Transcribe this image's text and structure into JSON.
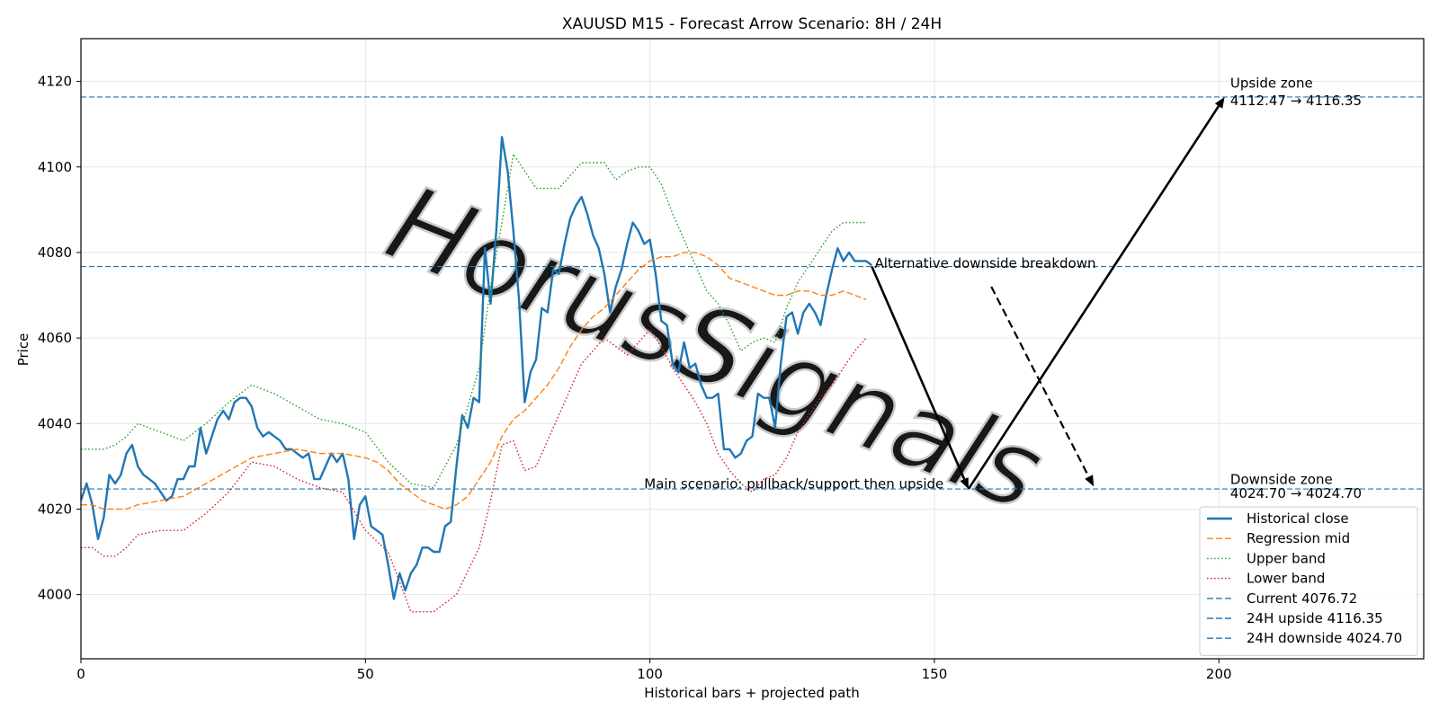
{
  "chart_data": {
    "type": "line",
    "title": "XAUUSD M15 - Forecast Arrow Scenario: 8H / 24H",
    "xlabel": "Historical bars + projected path",
    "ylabel": "Price",
    "xlim": [
      0,
      236
    ],
    "ylim": [
      3985,
      4130
    ],
    "x_ticks": [
      0,
      50,
      100,
      150,
      200
    ],
    "y_ticks": [
      4000,
      4020,
      4040,
      4060,
      4080,
      4100,
      4120
    ],
    "grid": true,
    "legend_position": "lower-right",
    "watermark": "HorusSignals",
    "series": [
      {
        "name": "Historical close",
        "color": "#1f77b4",
        "style": "solid",
        "x": [
          0,
          1,
          2,
          3,
          4,
          5,
          6,
          7,
          8,
          9,
          10,
          11,
          12,
          13,
          14,
          15,
          16,
          17,
          18,
          19,
          20,
          21,
          22,
          23,
          24,
          25,
          26,
          27,
          28,
          29,
          30,
          31,
          32,
          33,
          34,
          35,
          36,
          37,
          38,
          39,
          40,
          41,
          42,
          43,
          44,
          45,
          46,
          47,
          48,
          49,
          50,
          51,
          52,
          53,
          54,
          55,
          56,
          57,
          58,
          59,
          60,
          61,
          62,
          63,
          64,
          65,
          66,
          67,
          68,
          69,
          70,
          71,
          72,
          73,
          74,
          75,
          76,
          77,
          78,
          79,
          80,
          81,
          82,
          83,
          84,
          85,
          86,
          87,
          88,
          89,
          90,
          91,
          92,
          93,
          94,
          95,
          96,
          97,
          98,
          99,
          100,
          101,
          102,
          103,
          104,
          105,
          106,
          107,
          108,
          109,
          110,
          111,
          112,
          113,
          114,
          115,
          116,
          117,
          118,
          119,
          120,
          121,
          122,
          123,
          124,
          125,
          126,
          127,
          128,
          129,
          130,
          131,
          132,
          133,
          134,
          135,
          136,
          137,
          138,
          139
        ],
        "values": [
          4022,
          4026,
          4021,
          4013,
          4018,
          4028,
          4026,
          4028,
          4033,
          4035,
          4030,
          4028,
          4027,
          4026,
          4024,
          4022,
          4023,
          4027,
          4027,
          4030,
          4030,
          4039,
          4033,
          4037,
          4041,
          4043,
          4041,
          4045,
          4046,
          4046,
          4044,
          4039,
          4037,
          4038,
          4037,
          4036,
          4034,
          4034,
          4033,
          4032,
          4033,
          4027,
          4027,
          4030,
          4033,
          4031,
          4033,
          4027,
          4013,
          4021,
          4023,
          4016,
          4015,
          4014,
          4007,
          3999,
          4005,
          4001,
          4005,
          4007,
          4011,
          4011,
          4010,
          4010,
          4016,
          4017,
          4030,
          4042,
          4039,
          4046,
          4045,
          4081,
          4068,
          4085,
          4107,
          4099,
          4085,
          4069,
          4045,
          4052,
          4055,
          4067,
          4066,
          4076,
          4075,
          4082,
          4088,
          4091,
          4093,
          4089,
          4084,
          4081,
          4075,
          4066,
          4072,
          4076,
          4082,
          4087,
          4085,
          4082,
          4083,
          4075,
          4064,
          4063,
          4054,
          4052,
          4059,
          4053,
          4054,
          4049,
          4046,
          4046,
          4047,
          4034,
          4034,
          4032,
          4033,
          4036,
          4037,
          4047,
          4046,
          4046,
          4039,
          4054,
          4065,
          4066,
          4061,
          4066,
          4068,
          4066,
          4063,
          4070,
          4076,
          4081,
          4078,
          4080,
          4078,
          4078,
          4078,
          4077
        ]
      },
      {
        "name": "Regression mid",
        "color": "#ff7f0e",
        "style": "dashed",
        "x": [
          0,
          2,
          4,
          6,
          8,
          10,
          14,
          18,
          22,
          26,
          30,
          34,
          38,
          42,
          46,
          50,
          52,
          54,
          56,
          58,
          60,
          62,
          64,
          66,
          68,
          70,
          72,
          74,
          76,
          78,
          80,
          82,
          84,
          86,
          88,
          90,
          92,
          94,
          96,
          98,
          100,
          102,
          104,
          106,
          108,
          110,
          112,
          114,
          116,
          118,
          120,
          122,
          124,
          126,
          128,
          130,
          132,
          134,
          136,
          138
        ],
        "values": [
          4021,
          4021,
          4020,
          4020,
          4020,
          4021,
          4022,
          4023,
          4026,
          4029,
          4032,
          4033,
          4034,
          4033,
          4033,
          4032,
          4031,
          4029,
          4026,
          4024,
          4022,
          4021,
          4020,
          4021,
          4023,
          4027,
          4031,
          4037,
          4041,
          4043,
          4046,
          4049,
          4053,
          4058,
          4062,
          4065,
          4067,
          4070,
          4073,
          4076,
          4078,
          4079,
          4079,
          4080,
          4080,
          4079,
          4077,
          4074,
          4073,
          4072,
          4071,
          4070,
          4070,
          4071,
          4071,
          4070,
          4070,
          4071,
          4070,
          4069
        ]
      },
      {
        "name": "Upper band",
        "color": "#2ca02c",
        "style": "dotted",
        "x": [
          0,
          2,
          4,
          6,
          8,
          10,
          14,
          18,
          22,
          26,
          30,
          34,
          38,
          42,
          46,
          50,
          54,
          58,
          62,
          66,
          70,
          72,
          74,
          76,
          78,
          80,
          84,
          88,
          92,
          94,
          96,
          98,
          100,
          102,
          104,
          106,
          108,
          110,
          112,
          114,
          116,
          118,
          120,
          122,
          124,
          126,
          128,
          130,
          132,
          134,
          136,
          138
        ],
        "values": [
          4034,
          4034,
          4034,
          4035,
          4037,
          4040,
          4038,
          4036,
          4040,
          4045,
          4049,
          4047,
          4044,
          4041,
          4040,
          4038,
          4031,
          4026,
          4025,
          4035,
          4053,
          4072,
          4087,
          4103,
          4099,
          4095,
          4095,
          4101,
          4101,
          4097,
          4099,
          4100,
          4100,
          4096,
          4089,
          4083,
          4077,
          4071,
          4068,
          4063,
          4057,
          4059,
          4060,
          4059,
          4067,
          4073,
          4077,
          4081,
          4085,
          4087,
          4087,
          4087
        ]
      },
      {
        "name": "Lower band",
        "color": "#d62728",
        "style": "dotted",
        "x": [
          0,
          2,
          4,
          6,
          8,
          10,
          14,
          18,
          22,
          26,
          30,
          34,
          38,
          42,
          46,
          50,
          54,
          58,
          62,
          66,
          70,
          72,
          74,
          76,
          78,
          80,
          84,
          88,
          92,
          94,
          96,
          98,
          100,
          102,
          104,
          106,
          108,
          110,
          112,
          114,
          116,
          118,
          120,
          122,
          124,
          126,
          128,
          130,
          132,
          134,
          136,
          138
        ],
        "values": [
          4011,
          4011,
          4009,
          4009,
          4011,
          4014,
          4015,
          4015,
          4019,
          4024,
          4031,
          4030,
          4027,
          4025,
          4024,
          4015,
          4010,
          3996,
          3996,
          4000,
          4011,
          4022,
          4035,
          4036,
          4029,
          4030,
          4042,
          4054,
          4060,
          4058,
          4056,
          4059,
          4062,
          4058,
          4053,
          4049,
          4045,
          4040,
          4033,
          4029,
          4026,
          4024,
          4027,
          4028,
          4032,
          4038,
          4042,
          4046,
          4049,
          4053,
          4057,
          4060
        ]
      }
    ],
    "reference_lines": [
      {
        "name": "Current 4076.72",
        "y": 4076.72,
        "color": "#1f77b4",
        "style": "dashed"
      },
      {
        "name": "24H upside 4116.35",
        "y": 4116.35,
        "color": "#1f77b4",
        "style": "dashed"
      },
      {
        "name": "24H downside 4024.70",
        "y": 4024.7,
        "color": "#1f77b4",
        "style": "dashed"
      }
    ],
    "arrows": [
      {
        "from": [
          139,
          4076.72
        ],
        "to": [
          156,
          4024.7
        ],
        "style": "solid"
      },
      {
        "from": [
          156,
          4024.7
        ],
        "to": [
          201,
          4116.35
        ],
        "style": "solid"
      },
      {
        "from": [
          160,
          4072
        ],
        "to": [
          178,
          4025.3
        ],
        "style": "dashed"
      }
    ],
    "annotations": [
      {
        "text": "Upside zone",
        "x": 202,
        "y": 4118.5
      },
      {
        "text": "4112.47 → 4116.35",
        "x": 202,
        "y": 4114.4
      },
      {
        "text": "Downside zone",
        "x": 202,
        "y": 4025.9
      },
      {
        "text": "4024.70 → 4024.70",
        "x": 202,
        "y": 4022.6
      },
      {
        "text": "Alternative downside breakdown",
        "x": 139.5,
        "y": 4076.4
      },
      {
        "text": "Main scenario: pullback/support then upside",
        "x": 99,
        "y": 4024.8
      }
    ]
  }
}
